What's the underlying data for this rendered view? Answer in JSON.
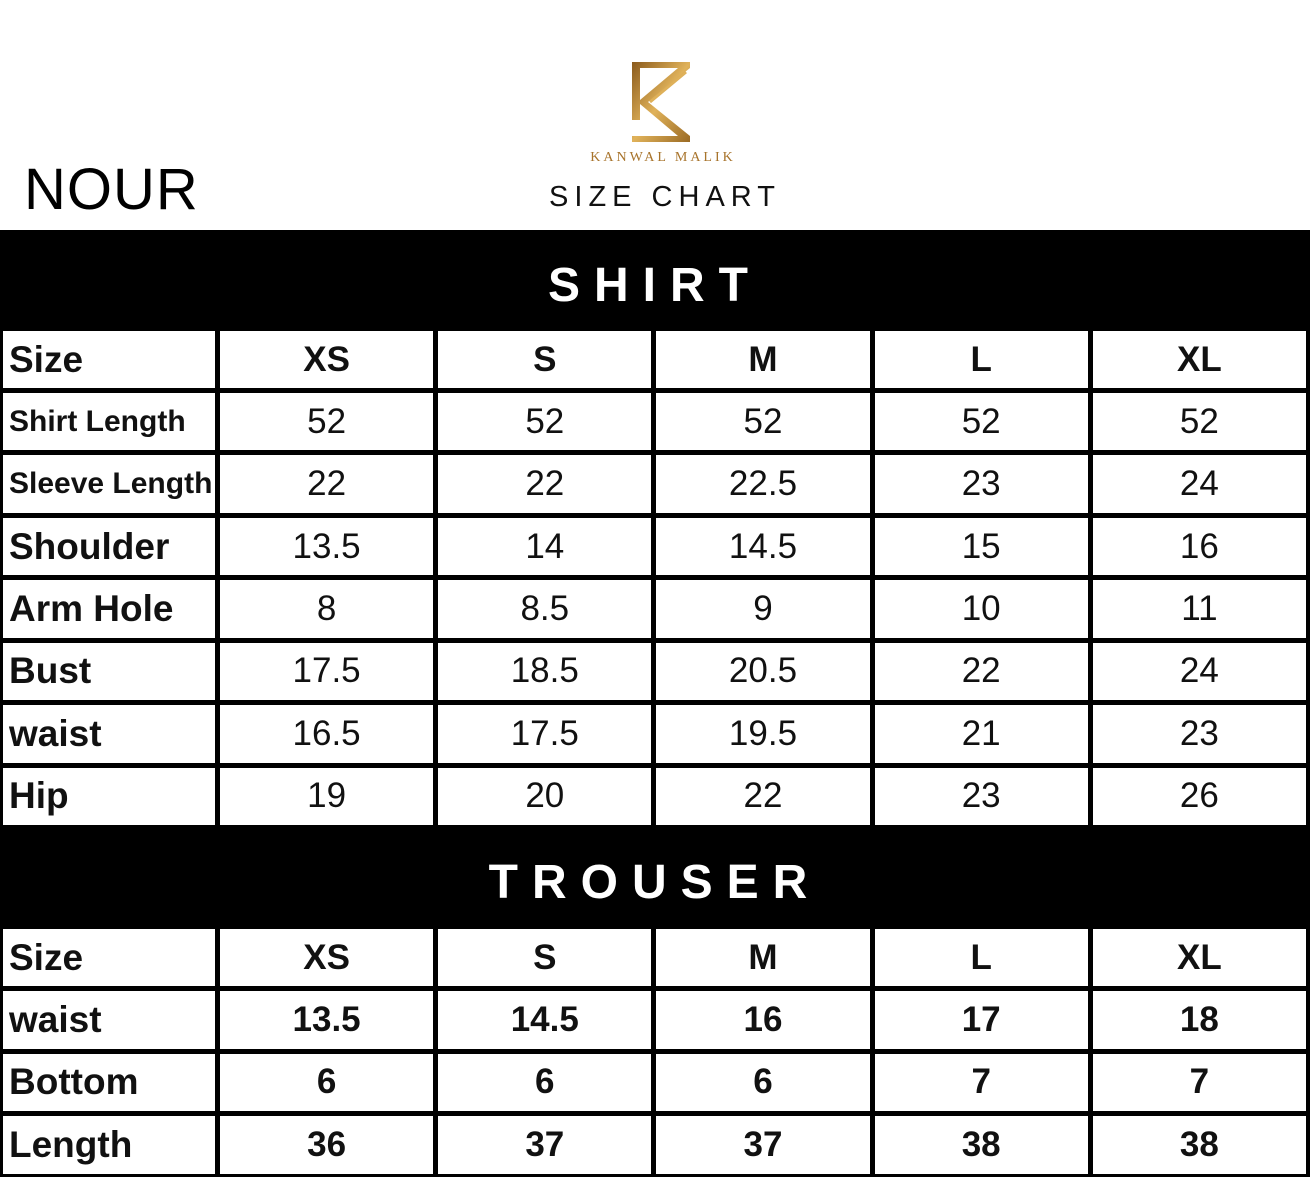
{
  "header": {
    "product_name": "NOUR",
    "brand": "KANWAL MALIK",
    "title": "SIZE CHART",
    "brand_color": "#b8862f"
  },
  "shirt": {
    "title": "SHIRT",
    "columns": [
      "Size",
      "XS",
      "S",
      "M",
      "L",
      "XL"
    ],
    "rows": [
      {
        "label": "Shirt Length",
        "values": [
          "52",
          "52",
          "52",
          "52",
          "52"
        ]
      },
      {
        "label": "Sleeve Length",
        "values": [
          "22",
          "22",
          "22.5",
          "23",
          "24"
        ]
      },
      {
        "label": "Shoulder",
        "values": [
          "13.5",
          "14",
          "14.5",
          "15",
          "16"
        ]
      },
      {
        "label": "Arm Hole",
        "values": [
          "8",
          "8.5",
          "9",
          "10",
          "11"
        ]
      },
      {
        "label": "Bust",
        "values": [
          "17.5",
          "18.5",
          "20.5",
          "22",
          "24"
        ]
      },
      {
        "label": "waist",
        "values": [
          "16.5",
          "17.5",
          "19.5",
          "21",
          "23"
        ]
      },
      {
        "label": "Hip",
        "values": [
          "19",
          "20",
          "22",
          "23",
          "26"
        ]
      }
    ]
  },
  "trouser": {
    "title": "TROUSER",
    "columns": [
      "Size",
      "XS",
      "S",
      "M",
      "L",
      "XL"
    ],
    "rows": [
      {
        "label": "waist",
        "values": [
          "13.5",
          "14.5",
          "16",
          "17",
          "18"
        ]
      },
      {
        "label": "Bottom",
        "values": [
          "6",
          "6",
          "6",
          "7",
          "7"
        ]
      },
      {
        "label": "Length",
        "values": [
          "36",
          "37",
          "37",
          "38",
          "38"
        ]
      }
    ]
  }
}
